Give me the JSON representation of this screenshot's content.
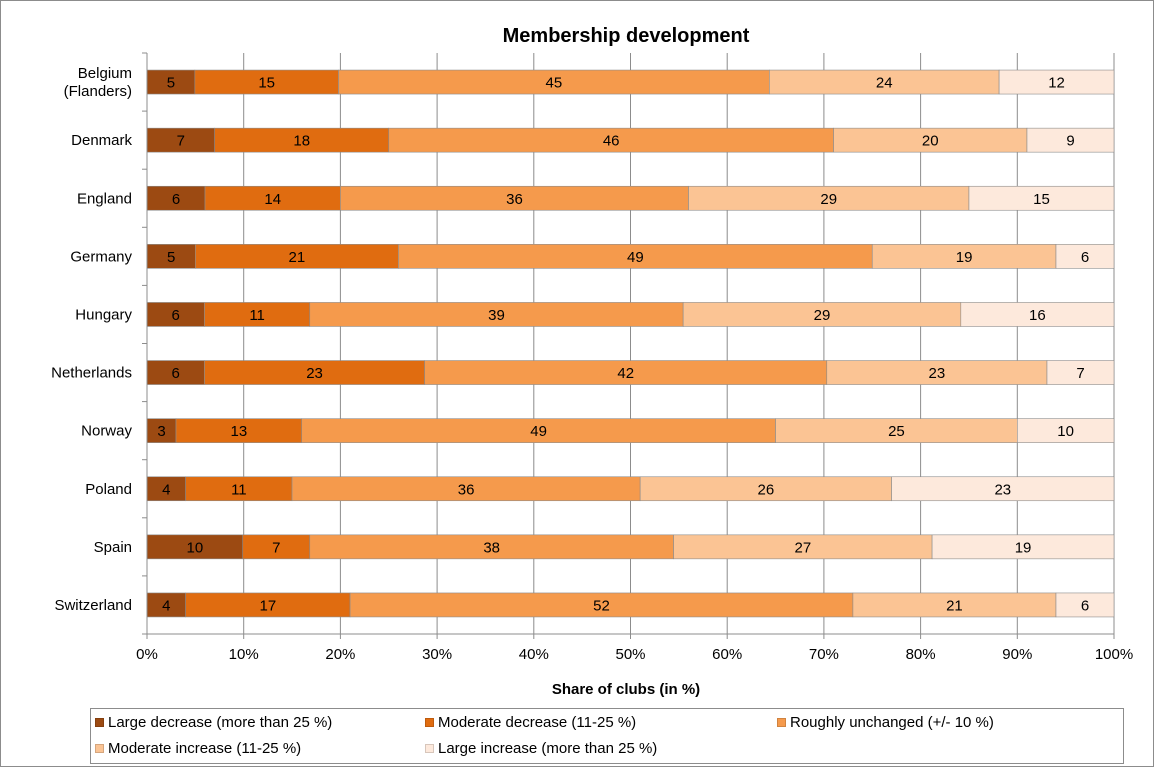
{
  "chart_data": {
    "type": "bar",
    "orientation": "horizontal",
    "stacked": "percent",
    "title": "Membership development",
    "xlabel": "Share of clubs (in %)",
    "ylabel": "",
    "xlim": [
      0,
      100
    ],
    "x_ticks": [
      "0%",
      "10%",
      "20%",
      "30%",
      "40%",
      "50%",
      "60%",
      "70%",
      "80%",
      "90%",
      "100%"
    ],
    "grid": "vertical",
    "legend_position": "bottom",
    "categories": [
      "Belgium (Flanders)",
      "Denmark",
      "England",
      "Germany",
      "Hungary",
      "Netherlands",
      "Norway",
      "Poland",
      "Spain",
      "Switzerland"
    ],
    "series": [
      {
        "name": "Large decrease (more than 25 %)",
        "color": "#9c4a12",
        "values": [
          5,
          7,
          6,
          5,
          6,
          6,
          3,
          4,
          10,
          4
        ]
      },
      {
        "name": "Moderate decrease (11-25 %)",
        "color": "#e06c10",
        "values": [
          15,
          18,
          14,
          21,
          11,
          23,
          13,
          11,
          7,
          17
        ]
      },
      {
        "name": "Roughly unchanged (+/- 10 %)",
        "color": "#f59a4c",
        "values": [
          45,
          46,
          36,
          49,
          39,
          42,
          49,
          36,
          38,
          52
        ]
      },
      {
        "name": "Moderate increase (11-25 %)",
        "color": "#fbc494",
        "values": [
          24,
          20,
          29,
          19,
          29,
          23,
          25,
          26,
          27,
          21
        ]
      },
      {
        "name": "Large increase (more than 25 %)",
        "color": "#fde9dc",
        "values": [
          12,
          9,
          15,
          6,
          16,
          7,
          10,
          23,
          19,
          6
        ]
      }
    ]
  }
}
